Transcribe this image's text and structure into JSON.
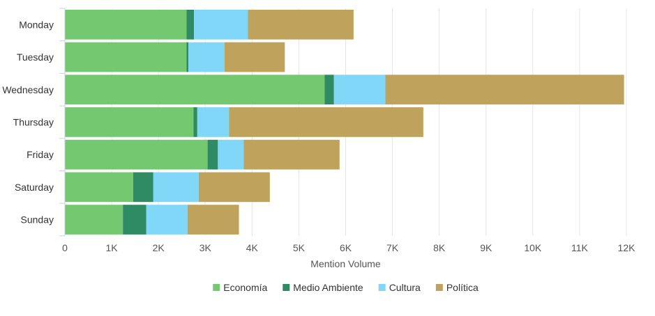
{
  "chart_data": {
    "type": "bar",
    "orientation": "horizontal",
    "stacked": true,
    "categories": [
      "Monday",
      "Tuesday",
      "Wednesday",
      "Thursday",
      "Friday",
      "Saturday",
      "Sunday"
    ],
    "series": [
      {
        "name": "Economía",
        "color": "#74c970",
        "values": [
          2600,
          2600,
          5550,
          2750,
          3050,
          1460,
          1240
        ]
      },
      {
        "name": "Medio Ambiente",
        "color": "#2e8b63",
        "values": [
          160,
          40,
          200,
          80,
          220,
          430,
          500
        ]
      },
      {
        "name": "Cultura",
        "color": "#81d7f7",
        "values": [
          1150,
          770,
          1100,
          680,
          550,
          970,
          880
        ]
      },
      {
        "name": "Política",
        "color": "#bfa35d",
        "values": [
          2260,
          1290,
          5100,
          4150,
          2050,
          1520,
          1100
        ]
      }
    ],
    "xlabel": "Mention Volume",
    "ylabel": "",
    "xlim": [
      0,
      12000
    ],
    "x_ticks": [
      0,
      1000,
      2000,
      3000,
      4000,
      5000,
      6000,
      7000,
      8000,
      9000,
      10000,
      11000,
      12000
    ],
    "x_tick_labels": [
      "0",
      "1K",
      "2K",
      "3K",
      "4K",
      "5K",
      "6K",
      "7K",
      "8K",
      "9K",
      "10K",
      "11K",
      "12K"
    ],
    "grid": true,
    "legend_position": "bottom-center"
  }
}
